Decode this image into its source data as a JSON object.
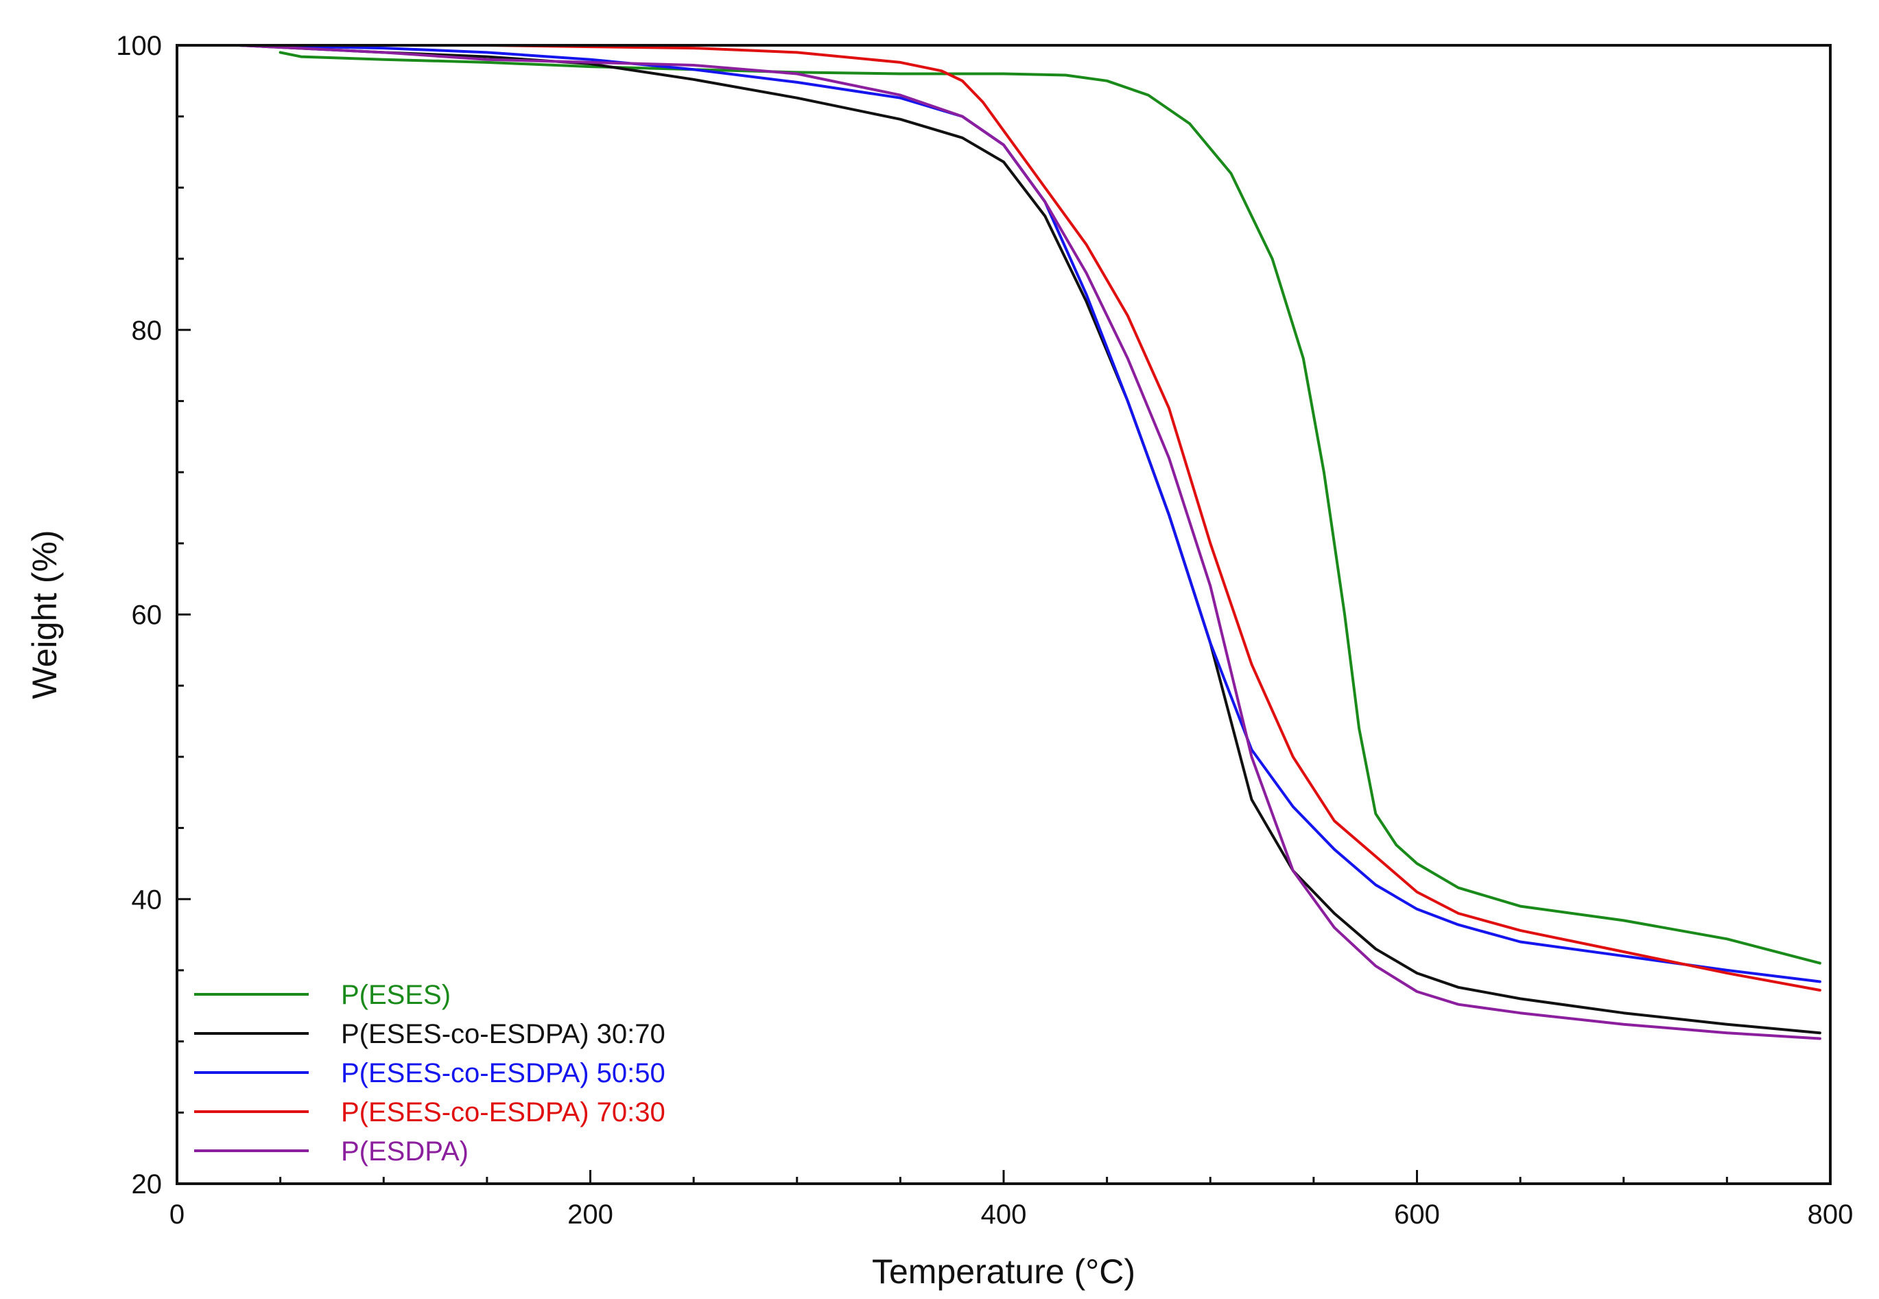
{
  "chart_data": {
    "type": "line",
    "title": "",
    "xlabel": "Temperature (°C)",
    "ylabel": "Weight (%)",
    "xlim": [
      0,
      800
    ],
    "ylim": [
      20,
      100
    ],
    "xticks": [
      0,
      200,
      400,
      600,
      800
    ],
    "yticks": [
      20,
      40,
      60,
      80,
      100
    ],
    "xtick_labels": [
      "0",
      "200",
      "400",
      "600",
      "800"
    ],
    "ytick_labels": [
      "20",
      "40",
      "60",
      "80",
      "100"
    ],
    "grid": false,
    "legend_position": "bottom-left",
    "series": [
      {
        "name": "P(ESES)",
        "color": "#1a8a1a",
        "x": [
          50,
          60,
          100,
          150,
          200,
          250,
          300,
          350,
          400,
          430,
          450,
          470,
          490,
          510,
          530,
          545,
          555,
          565,
          572,
          580,
          590,
          600,
          620,
          650,
          700,
          750,
          795
        ],
        "y": [
          99.5,
          99.2,
          99.0,
          98.8,
          98.5,
          98.3,
          98.1,
          98.0,
          98.0,
          97.9,
          97.5,
          96.5,
          94.5,
          91,
          85,
          78,
          70,
          60,
          52,
          46,
          43.8,
          42.5,
          40.8,
          39.5,
          38.5,
          37.2,
          35.5
        ]
      },
      {
        "name": "P(ESES-co-ESDPA) 30:70",
        "color": "#111111",
        "x": [
          30,
          100,
          150,
          200,
          250,
          300,
          350,
          380,
          400,
          420,
          440,
          460,
          480,
          500,
          520,
          540,
          560,
          580,
          600,
          620,
          650,
          700,
          750,
          795
        ],
        "y": [
          100,
          99.5,
          99.2,
          98.7,
          97.6,
          96.3,
          94.8,
          93.5,
          91.8,
          88,
          82,
          75,
          67,
          58,
          47,
          42,
          39,
          36.5,
          34.8,
          33.8,
          33.0,
          32.0,
          31.2,
          30.6
        ]
      },
      {
        "name": "P(ESES-co-ESDPA) 50:50",
        "color": "#1515ee",
        "x": [
          30,
          100,
          150,
          200,
          250,
          300,
          350,
          380,
          400,
          420,
          440,
          460,
          480,
          500,
          520,
          540,
          560,
          580,
          600,
          620,
          650,
          700,
          750,
          795
        ],
        "y": [
          100,
          99.8,
          99.5,
          99.0,
          98.3,
          97.4,
          96.3,
          95.0,
          93.0,
          89,
          82.5,
          75,
          67,
          58,
          50.5,
          46.5,
          43.5,
          41,
          39.3,
          38.2,
          37.0,
          36.0,
          35.0,
          34.2
        ]
      },
      {
        "name": "P(ESES-co-ESDPA) 70:30",
        "color": "#e01010",
        "x": [
          30,
          100,
          150,
          200,
          250,
          300,
          350,
          370,
          380,
          390,
          400,
          420,
          440,
          460,
          480,
          500,
          520,
          540,
          560,
          580,
          600,
          620,
          650,
          700,
          750,
          795
        ],
        "y": [
          100,
          100,
          100,
          99.9,
          99.8,
          99.5,
          98.8,
          98.2,
          97.5,
          96.0,
          94.0,
          90,
          86,
          81,
          74.5,
          65,
          56.5,
          50,
          45.5,
          43,
          40.5,
          39.0,
          37.8,
          36.3,
          34.8,
          33.6
        ]
      },
      {
        "name": "P(ESDPA)",
        "color": "#8b1f9e",
        "x": [
          30,
          100,
          150,
          200,
          250,
          300,
          350,
          380,
          400,
          420,
          440,
          460,
          480,
          500,
          520,
          540,
          560,
          580,
          600,
          620,
          650,
          700,
          750,
          795
        ],
        "y": [
          100,
          99.5,
          99.0,
          98.8,
          98.6,
          98.0,
          96.5,
          95.0,
          93.0,
          89,
          84,
          78,
          71,
          62,
          50,
          42,
          38,
          35.3,
          33.5,
          32.6,
          32.0,
          31.2,
          30.6,
          30.2
        ]
      }
    ]
  }
}
